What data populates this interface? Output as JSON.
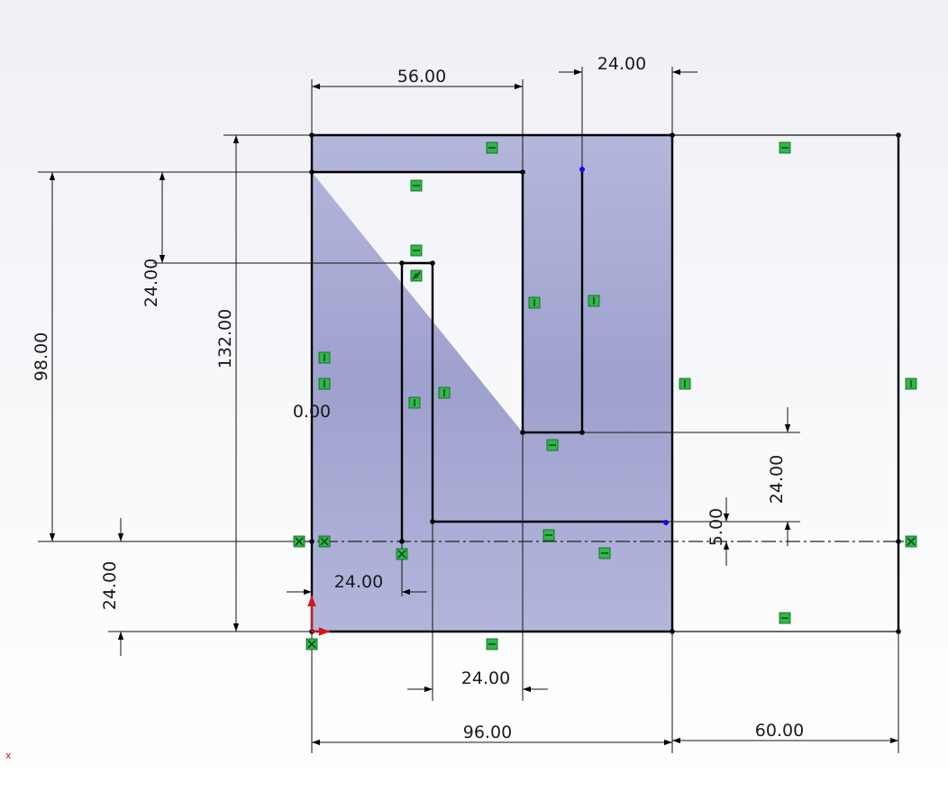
{
  "colors": {
    "background_top": "#f3f4f7",
    "background_bottom": "#ffffff",
    "region_fill": "#9fa3d0",
    "geometry": "#000000",
    "relation_glyph": "#2fb84a",
    "origin_x": "#d4141b",
    "selected_point": "#1010ff"
  },
  "dimensions": {
    "top_width": "56.00",
    "top_right_offset": "24.00",
    "left_depth": "24.00",
    "left_height": "98.00",
    "total_height": "132.00",
    "zero_label": "0.00",
    "right_step": "24.00",
    "small_gap": "5.00",
    "bottom_left_height": "24.00",
    "inner_left_width": "24.00",
    "bottom_slot_width": "24.00",
    "overall_width": "96.00",
    "right_width": "60.00"
  },
  "origin": {
    "x_axis_label": "x"
  },
  "relations": [
    "horizontal-relation",
    "vertical-relation",
    "coincident-relation",
    "midpoint-relation"
  ],
  "chart_data": null
}
